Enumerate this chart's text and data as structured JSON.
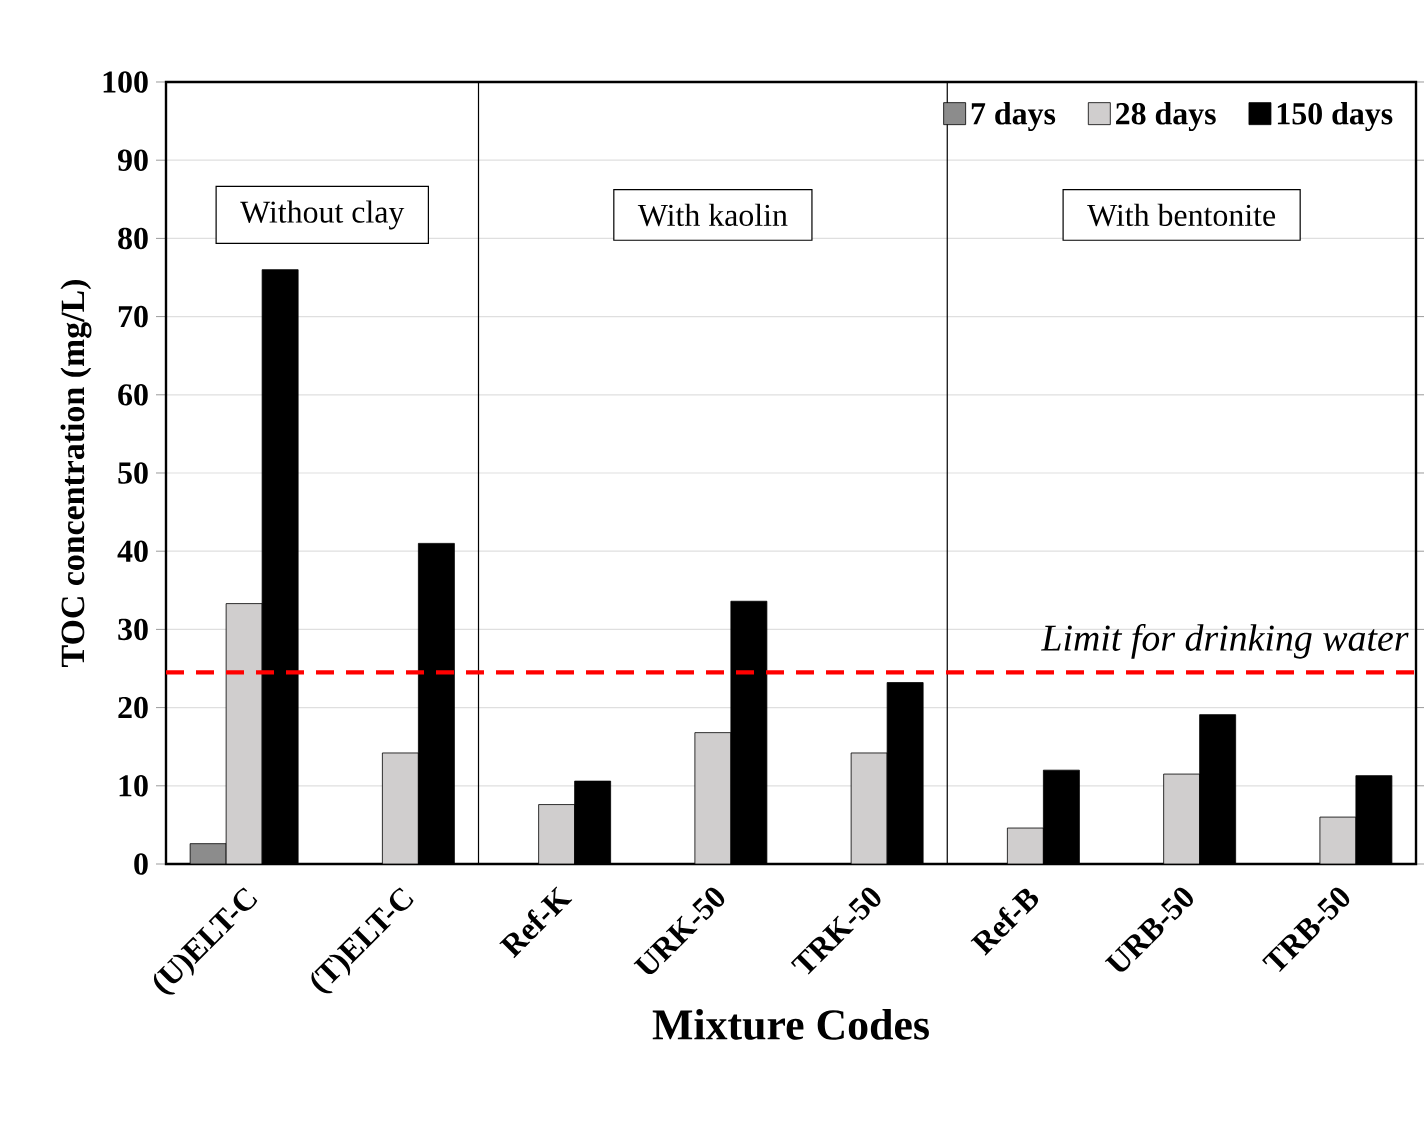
{
  "chart_data": {
    "type": "bar",
    "categories": [
      "(U)ELT-C",
      "(T)ELT-C",
      "Ref-K",
      "URK-50",
      "TRK-50",
      "Ref-B",
      "URB-50",
      "TRB-50"
    ],
    "series": [
      {
        "name": "7 days",
        "color": "#8c8c8c",
        "values": [
          2.6,
          null,
          null,
          null,
          null,
          null,
          null,
          null
        ]
      },
      {
        "name": "28 days",
        "color": "#d0cece",
        "values": [
          33.3,
          14.2,
          7.6,
          16.8,
          14.2,
          4.6,
          11.5,
          6.0
        ]
      },
      {
        "name": "150 days",
        "color": "#000000",
        "values": [
          76.0,
          41.0,
          10.6,
          33.6,
          23.2,
          12.0,
          19.1,
          11.3
        ]
      }
    ],
    "xlabel": "Mixture Codes",
    "ylabel": "TOC concentration (mg/L)",
    "ylim": [
      0,
      100
    ],
    "yticks": [
      0,
      10,
      20,
      30,
      40,
      50,
      60,
      70,
      80,
      90,
      100
    ],
    "grid": "y",
    "legend": "top right",
    "ref_lines": [
      {
        "axis": "y",
        "value": 24.5,
        "label": "Limit for drinking water",
        "color": "#ff0000",
        "line_style": "dashed"
      }
    ],
    "annotations": [
      "Without clay",
      "With kaolin",
      "With bentonite"
    ]
  }
}
